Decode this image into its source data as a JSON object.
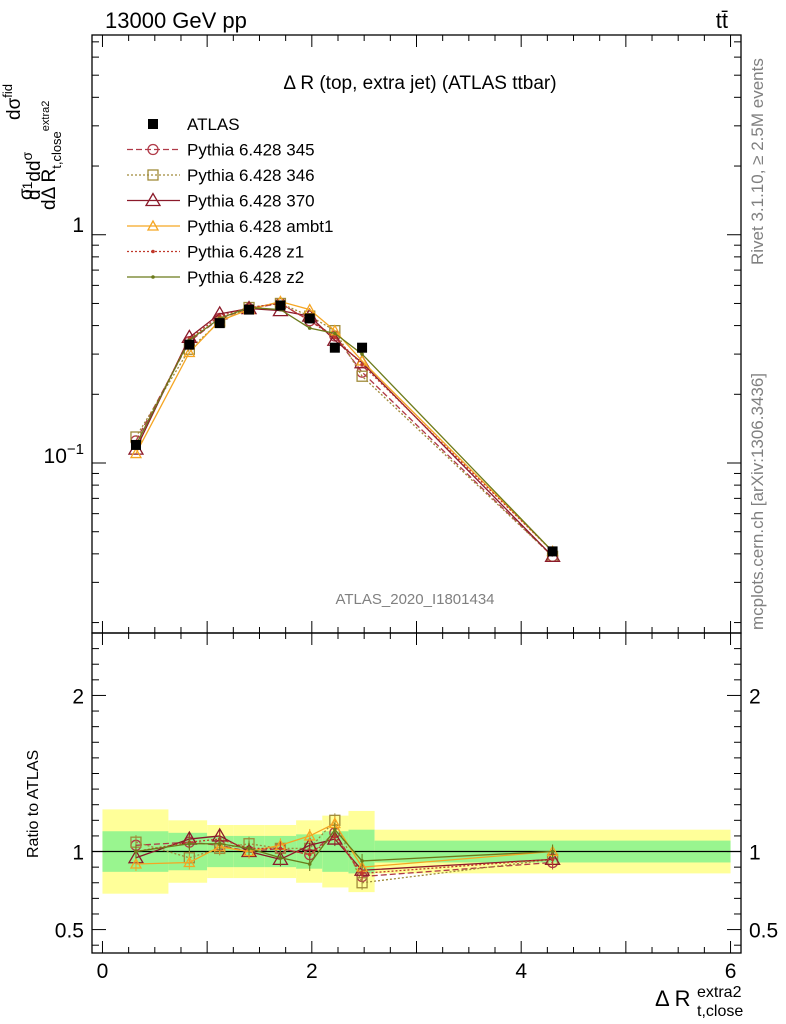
{
  "header": {
    "left": "13000 GeV pp",
    "right": "tt̄"
  },
  "side_labels": {
    "rivet": "Rivet 3.1.10, ≥ 2.5M events",
    "mcplots": "mcplots.cern.ch [arXiv:1306.3436]"
  },
  "colors": {
    "atlas": "#000000",
    "p345": "#b03a48",
    "p346": "#a08b3a",
    "p370": "#8b1a2a",
    "ambt1": "#f5a623",
    "z1": "#c0392b",
    "z2": "#6b7a1a",
    "band_inner": "#99f58f",
    "band_outer": "#ffff99"
  },
  "chart_data": {
    "type": "line",
    "title": "Δ R (top, extra jet) (ATLAS ttbar)",
    "watermark": "ATLAS_2020_I1801434",
    "ylabel_main": "dσ/dΔ R (1/σ)",
    "ylabel_ratio": "Ratio to ATLAS",
    "xlabel": "Δ R",
    "xlabel_sup": "extra2",
    "xlabel_sub": "t,close",
    "xlim": [
      -0.1,
      6.1
    ],
    "ylim_main": [
      0.018,
      7.5
    ],
    "yscale_main": "log",
    "ylim_ratio": [
      0.35,
      2.4
    ],
    "x_ticks": [
      "0",
      "2",
      "4",
      "6"
    ],
    "y_ticks_main": [
      "10^-1",
      "1"
    ],
    "y_ticks_ratio": [
      "0.5",
      "1",
      "2"
    ],
    "legend_position": "top-left",
    "x": [
      0.32,
      0.83,
      1.12,
      1.4,
      1.7,
      1.98,
      2.22,
      2.48,
      4.3
    ],
    "bins": [
      [
        0.0,
        0.63
      ],
      [
        0.63,
        1.0
      ],
      [
        1.0,
        1.25
      ],
      [
        1.25,
        1.55
      ],
      [
        1.55,
        1.85
      ],
      [
        1.85,
        2.1
      ],
      [
        2.1,
        2.35
      ],
      [
        2.35,
        2.6
      ],
      [
        2.6,
        6.0
      ]
    ],
    "atlas": [
      0.12,
      0.33,
      0.41,
      0.47,
      0.49,
      0.43,
      0.32,
      0.32,
      0.041
    ],
    "band_inner": [
      0.13,
      0.12,
      0.1,
      0.1,
      0.1,
      0.11,
      0.13,
      0.14,
      0.07
    ],
    "band_outer": [
      0.27,
      0.2,
      0.17,
      0.17,
      0.17,
      0.2,
      0.23,
      0.26,
      0.14
    ],
    "series": [
      {
        "name": "ATLAS",
        "values": [
          0.12,
          0.33,
          0.41,
          0.47,
          0.49,
          0.43,
          0.32,
          0.32,
          0.041
        ]
      },
      {
        "name": "Pythia 6.428 345",
        "values": [
          0.125,
          0.34,
          0.43,
          0.475,
          0.5,
          0.42,
          0.36,
          0.25,
          0.039
        ],
        "ratio": [
          1.04,
          1.06,
          1.04,
          1.0,
          1.02,
          0.98,
          1.12,
          0.84,
          0.93
        ]
      },
      {
        "name": "Pythia 6.428 346",
        "values": [
          0.13,
          0.315,
          0.415,
          0.48,
          0.5,
          0.44,
          0.38,
          0.24,
          0.039
        ],
        "ratio": [
          1.06,
          0.96,
          1.02,
          1.05,
          1.02,
          1.02,
          1.2,
          0.8,
          0.95
        ]
      },
      {
        "name": "Pythia 6.428 370",
        "values": [
          0.115,
          0.355,
          0.45,
          0.475,
          0.465,
          0.44,
          0.345,
          0.275,
          0.039
        ],
        "ratio": [
          0.96,
          1.08,
          1.1,
          1.0,
          0.95,
          1.04,
          1.08,
          0.88,
          0.95
        ]
      },
      {
        "name": "Pythia 6.428 ambt1",
        "values": [
          0.11,
          0.305,
          0.42,
          0.47,
          0.51,
          0.47,
          0.38,
          0.28,
          0.041
        ],
        "ratio": [
          0.92,
          0.93,
          1.03,
          1.0,
          1.04,
          1.1,
          1.18,
          0.9,
          1.0
        ]
      },
      {
        "name": "Pythia 6.428 z1",
        "values": [
          0.12,
          0.35,
          0.44,
          0.48,
          0.5,
          0.42,
          0.355,
          0.27,
          0.041
        ],
        "ratio": [
          1.0,
          1.06,
          1.08,
          1.02,
          1.02,
          0.98,
          1.1,
          0.86,
          0.95
        ]
      },
      {
        "name": "Pythia 6.428 z2",
        "values": [
          0.12,
          0.345,
          0.43,
          0.48,
          0.47,
          0.39,
          0.37,
          0.3,
          0.041
        ],
        "ratio": [
          1.0,
          1.05,
          1.05,
          1.02,
          0.96,
          0.92,
          1.14,
          0.94,
          1.0
        ]
      }
    ]
  }
}
